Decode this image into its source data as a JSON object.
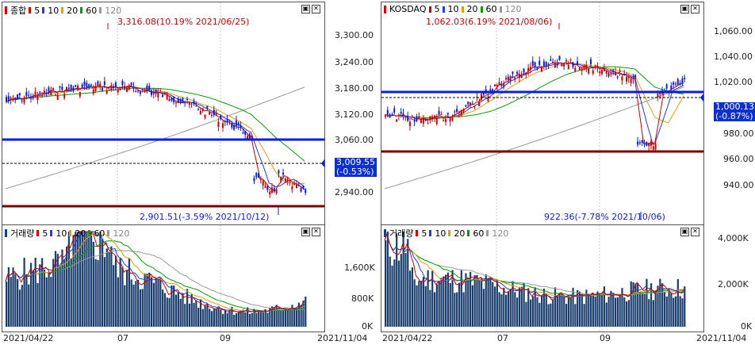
{
  "left": {
    "price_legend": {
      "title": "종합",
      "ma": [
        "5",
        "10",
        "20",
        "60",
        "120"
      ]
    },
    "volume_legend": {
      "title": "거래량",
      "ma": [
        "5",
        "10",
        "20",
        "60",
        "120"
      ]
    },
    "price_axis": [
      "3,300.00",
      "3,240.00",
      "3,180.00",
      "3,120.00",
      "3,060.00",
      "2,940.00"
    ],
    "volume_axis": [
      "1,600K",
      "800K",
      "0K"
    ],
    "current_price": "3,009.55",
    "current_change": "(-0.53%)",
    "high_annotation": "3,316.08(10.19% 2021/06/25)",
    "low_annotation": "2,901.51(-3.59% 2021/10/12)",
    "date_labels": [
      "2021/04/22",
      "07",
      "09",
      "2021/11/04"
    ],
    "colors": {
      "support": "#7a0000",
      "resistance": "#0a1ee0"
    }
  },
  "right": {
    "price_legend": {
      "title": "KOSDAQ",
      "ma": [
        "5",
        "10",
        "20",
        "60",
        "120"
      ]
    },
    "volume_legend": {
      "title": "거래량",
      "ma": [
        "5",
        "10",
        "20",
        "60",
        "120"
      ]
    },
    "price_axis": [
      "1,060.00",
      "1,040.00",
      "1,020.00",
      "980.00",
      "960.00",
      "940.00"
    ],
    "volume_axis": [
      "4,000K",
      "2,000K",
      "0K"
    ],
    "current_price": "1,000.13",
    "current_change": "(-0.87%)",
    "high_annotation": "1,062.03(6.19% 2021/08/06)",
    "low_annotation": "922.36(-7.78% 2021/10/06)",
    "date_labels": [
      "2021/04/22",
      "07",
      "09",
      "2021/11/04"
    ],
    "colors": {
      "support": "#7a0000",
      "resistance": "#0a1ee0"
    }
  },
  "ma_colors": {
    "ma5": "#d40000",
    "ma10": "#1a3ee0",
    "ma20": "#e0a000",
    "ma60": "#00a000",
    "ma120": "#999999"
  },
  "icons": {
    "window_buttons": [
      "restore-icon",
      "close-icon"
    ]
  }
}
